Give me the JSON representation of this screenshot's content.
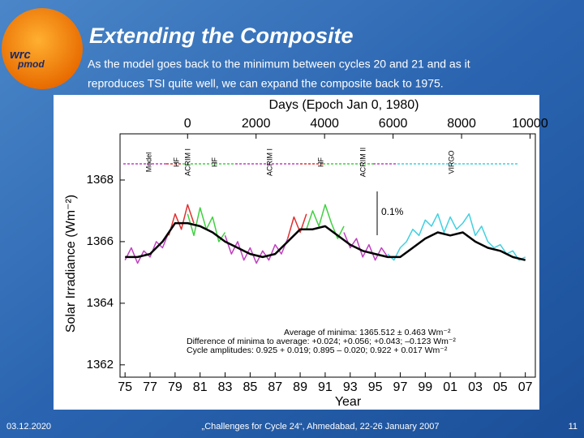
{
  "slide": {
    "title": "Extending the Composite",
    "text": [
      "As the model goes back to the minimum between cycles 20 and 21 and as it",
      "reproduces TSI quite well, we can expand the composite back to 1975."
    ],
    "logo": [
      "wrc",
      "pmod"
    ],
    "footer": {
      "date": "03.12.2020",
      "event": "„Challenges for Cycle 24“, Ahmedabad, 22-26 January 2007",
      "page": "11"
    }
  },
  "chart_data": {
    "type": "line",
    "x2label": "Days (Epoch Jan 0, 1980)",
    "xlabel": "Year",
    "ylabel": "Solar Irradiance (Wm⁻²)",
    "xlim": [
      1974.6,
      2007.8
    ],
    "x2lim": [
      -1972,
      10154
    ],
    "ylim": [
      1361.6,
      1369.5
    ],
    "xticks": [
      {
        "value": 1975,
        "label": "75"
      },
      {
        "value": 1977,
        "label": "77"
      },
      {
        "value": 1979,
        "label": "79"
      },
      {
        "value": 1981,
        "label": "81"
      },
      {
        "value": 1983,
        "label": "83"
      },
      {
        "value": 1985,
        "label": "85"
      },
      {
        "value": 1987,
        "label": "87"
      },
      {
        "value": 1989,
        "label": "89"
      },
      {
        "value": 1991,
        "label": "91"
      },
      {
        "value": 1993,
        "label": "93"
      },
      {
        "value": 1995,
        "label": "95"
      },
      {
        "value": 1997,
        "label": "97"
      },
      {
        "value": 1999,
        "label": "99"
      },
      {
        "value": 2001,
        "label": "01"
      },
      {
        "value": 2003,
        "label": "03"
      },
      {
        "value": 2005,
        "label": "05"
      },
      {
        "value": 2007,
        "label": "07"
      }
    ],
    "x2ticks": [
      0,
      2000,
      4000,
      6000,
      8000,
      10000
    ],
    "yticks": [
      1362,
      1364,
      1366,
      1368
    ],
    "instruments": [
      "Model",
      "HF",
      "ACRIM I",
      "HF",
      "ACRIM I",
      "HF",
      "ACRIM II",
      "VIRGO"
    ],
    "annotations": [
      "0.1%",
      "Average of minima:  1365.512 ± 0.463 Wm⁻²",
      "Difference of minima to average: +0.024; +0.056; +0.043; –0.123 Wm⁻²",
      "Cycle amplitudes:  0.925 + 0.019; 0.895 – 0.020; 0.922 + 0.017 Wm⁻²"
    ],
    "series": [
      {
        "color": "#c040c0",
        "x": [
          1975,
          1975.5,
          1976,
          1976.5,
          1977,
          1977.5,
          1978,
          1978.5,
          1980.75,
          1983,
          1983.5,
          1984,
          1984.5,
          1985,
          1985.5,
          1986,
          1986.5,
          1987,
          1987.5,
          1988,
          1990,
          1992.5,
          1993,
          1993.5,
          1994,
          1994.5,
          1995,
          1995.5,
          1996
        ],
        "values": [
          1365.4,
          1365.8,
          1365.3,
          1365.7,
          1365.5,
          1366.0,
          1365.8,
          1366.3,
          null,
          1366.2,
          1365.6,
          1366.0,
          1365.4,
          1365.8,
          1365.3,
          1365.7,
          1365.4,
          1365.9,
          1365.6,
          1366.1,
          null,
          1366.3,
          1365.8,
          1366.1,
          1365.5,
          1365.9,
          1365.4,
          1365.8,
          1365.5
        ]
      },
      {
        "color": "#e03030",
        "x": [
          1978.5,
          1979,
          1979.5,
          1980,
          1980.5,
          1984,
          1988,
          1988.5,
          1989,
          1989.5
        ],
        "values": [
          1366.2,
          1366.9,
          1366.4,
          1367.2,
          1366.6,
          null,
          1366.1,
          1366.8,
          1366.3,
          1366.9
        ]
      },
      {
        "color": "#40d040",
        "x": [
          1980,
          1980.5,
          1981,
          1981.5,
          1982,
          1982.5,
          1983,
          1986,
          1989.5,
          1990,
          1990.5,
          1991,
          1991.5,
          1992,
          1992.5
        ],
        "values": [
          1366.9,
          1366.2,
          1367.1,
          1366.4,
          1366.8,
          1366.0,
          1366.3,
          null,
          1366.4,
          1367.0,
          1366.5,
          1367.2,
          1366.6,
          1366.1,
          1366.5
        ]
      },
      {
        "color": "#40d0e0",
        "x": [
          1996,
          1996.5,
          1997,
          1997.5,
          1998,
          1998.5,
          1999,
          1999.5,
          2000,
          2000.5,
          2001,
          2001.5,
          2002,
          2002.5,
          2003,
          2003.5,
          2004,
          2004.5,
          2005,
          2005.5,
          2006,
          2006.5,
          2007
        ],
        "values": [
          1365.6,
          1365.4,
          1365.8,
          1366.0,
          1366.4,
          1366.2,
          1366.7,
          1366.5,
          1366.9,
          1366.3,
          1366.8,
          1366.4,
          1366.6,
          1366.9,
          1366.2,
          1366.5,
          1366.0,
          1365.8,
          1365.9,
          1365.6,
          1365.7,
          1365.4,
          1365.5
        ]
      },
      {
        "color": "#000000",
        "x": [
          1975,
          1976,
          1977,
          1978,
          1979,
          1980,
          1981,
          1982,
          1983,
          1984,
          1985,
          1986,
          1987,
          1988,
          1989,
          1990,
          1991,
          1992,
          1993,
          1994,
          1995,
          1996,
          1997,
          1998,
          1999,
          2000,
          2001,
          2002,
          2003,
          2004,
          2005,
          2006,
          2007
        ],
        "values": [
          1365.5,
          1365.5,
          1365.6,
          1366.0,
          1366.6,
          1366.6,
          1366.5,
          1366.3,
          1366.0,
          1365.8,
          1365.6,
          1365.5,
          1365.6,
          1366.0,
          1366.4,
          1366.4,
          1366.5,
          1366.2,
          1365.9,
          1365.7,
          1365.6,
          1365.5,
          1365.5,
          1365.8,
          1366.1,
          1366.3,
          1366.2,
          1366.3,
          1366.0,
          1365.8,
          1365.7,
          1365.5,
          1365.4
        ]
      }
    ]
  }
}
